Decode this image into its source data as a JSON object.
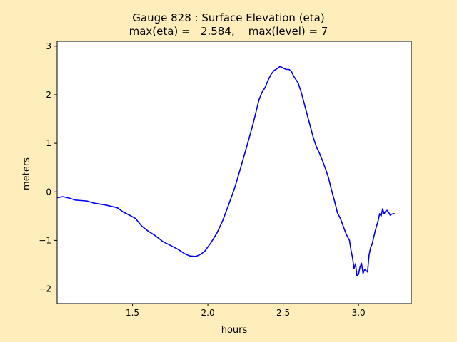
{
  "chart_data": {
    "type": "line",
    "title": "Gauge 828 : Surface Elevation (eta)",
    "subtitle": "max(eta) =   2.584,    max(level) = 7",
    "xlabel": "hours",
    "ylabel": "meters",
    "xlim": [
      1.0,
      3.35
    ],
    "ylim": [
      -2.3,
      3.1
    ],
    "xticks": [
      1.5,
      2.0,
      2.5,
      3.0
    ],
    "xtick_labels": [
      "1.5",
      "2.0",
      "2.5",
      "3.0"
    ],
    "yticks": [
      -2,
      -1,
      0,
      1,
      2,
      3
    ],
    "ytick_labels": [
      "−2",
      "−1",
      "0",
      "1",
      "2",
      "3"
    ],
    "grid": false,
    "colors": {
      "line": "#0000ee",
      "background": "#ffeebb",
      "axes": "#ffffff"
    },
    "series": [
      {
        "x": [
          1.0,
          1.04,
          1.08,
          1.12,
          1.16,
          1.2,
          1.24,
          1.28,
          1.32,
          1.36,
          1.4,
          1.44,
          1.48,
          1.52,
          1.56,
          1.6,
          1.65,
          1.7,
          1.75,
          1.8,
          1.85,
          1.88,
          1.92,
          1.95,
          1.98,
          2.02,
          2.06,
          2.1,
          2.14,
          2.18,
          2.22,
          2.26,
          2.3,
          2.34,
          2.36,
          2.38,
          2.4,
          2.42,
          2.44,
          2.46,
          2.48,
          2.5,
          2.52,
          2.54,
          2.555,
          2.57,
          2.6,
          2.62,
          2.64,
          2.66,
          2.68,
          2.7,
          2.72,
          2.74,
          2.76,
          2.78,
          2.8,
          2.82,
          2.84,
          2.86,
          2.88,
          2.9,
          2.92,
          2.94,
          2.95,
          2.96,
          2.97,
          2.98,
          2.99,
          3.0,
          3.01,
          3.02,
          3.03,
          3.04,
          3.05,
          3.06,
          3.07,
          3.08,
          3.09,
          3.1,
          3.11,
          3.12,
          3.13,
          3.14,
          3.15,
          3.16,
          3.17,
          3.18,
          3.19,
          3.2,
          3.21,
          3.22,
          3.23,
          3.24
        ],
        "y": [
          -0.12,
          -0.1,
          -0.13,
          -0.17,
          -0.18,
          -0.19,
          -0.23,
          -0.25,
          -0.27,
          -0.3,
          -0.33,
          -0.42,
          -0.48,
          -0.55,
          -0.7,
          -0.8,
          -0.9,
          -1.02,
          -1.1,
          -1.18,
          -1.28,
          -1.32,
          -1.33,
          -1.29,
          -1.22,
          -1.05,
          -0.85,
          -0.58,
          -0.25,
          0.1,
          0.52,
          0.95,
          1.4,
          1.9,
          2.05,
          2.15,
          2.3,
          2.42,
          2.5,
          2.54,
          2.584,
          2.55,
          2.52,
          2.52,
          2.48,
          2.38,
          2.24,
          2.05,
          1.82,
          1.58,
          1.35,
          1.12,
          0.93,
          0.8,
          0.65,
          0.48,
          0.3,
          0.05,
          -0.18,
          -0.43,
          -0.55,
          -0.72,
          -0.88,
          -1.0,
          -1.2,
          -1.35,
          -1.58,
          -1.48,
          -1.73,
          -1.7,
          -1.55,
          -1.47,
          -1.68,
          -1.6,
          -1.62,
          -1.65,
          -1.3,
          -1.15,
          -1.08,
          -0.95,
          -0.82,
          -0.7,
          -0.6,
          -0.45,
          -0.5,
          -0.35,
          -0.45,
          -0.4,
          -0.38,
          -0.42,
          -0.48,
          -0.46,
          -0.45,
          -0.45
        ]
      }
    ]
  }
}
